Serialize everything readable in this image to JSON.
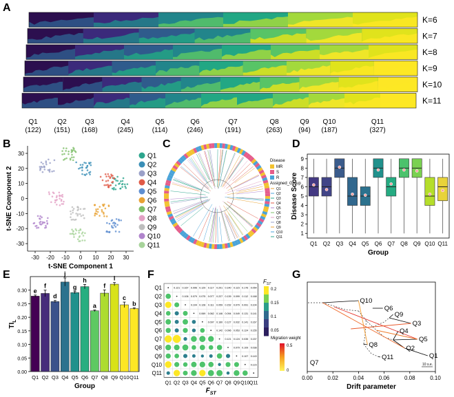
{
  "panels": {
    "A": "A",
    "B": "B",
    "C": "C",
    "D": "D",
    "E": "E",
    "F": "F",
    "G": "G"
  },
  "panel_a": {
    "k_labels": [
      "K=6",
      "K=7",
      "K=8",
      "K=9",
      "K=10",
      "K=11"
    ],
    "groups": [
      "Q1",
      "Q2",
      "Q3",
      "Q4",
      "Q5",
      "Q6",
      "Q7",
      "Q8",
      "Q9",
      "Q10",
      "Q11"
    ],
    "counts": [
      "(122)",
      "(151)",
      "(168)",
      "(245)",
      "(114)",
      "(246)",
      "(191)",
      "(263)",
      "(94)",
      "(187)",
      "(327)"
    ],
    "colors": [
      "#3b1f5e",
      "#46327e",
      "#365c8d",
      "#277f8e",
      "#1fa187",
      "#4ac16d",
      "#a0da39",
      "#d4e21a",
      "#fde725",
      "#2a788e",
      "#7ad151"
    ]
  },
  "panel_b": {
    "xlabel": "t-SNE Component 1",
    "ylabel": "t-SNE Component 2",
    "xticks": [
      "-30",
      "-20",
      "-10",
      "0",
      "10",
      "20",
      "30"
    ],
    "yticks": [
      "30",
      "20",
      "10",
      "0",
      "-10",
      "-20",
      "-30"
    ],
    "legend": [
      "Q1",
      "Q2",
      "Q3",
      "Q4",
      "Q5",
      "Q6",
      "Q7",
      "Q8",
      "Q9",
      "Q10",
      "Q11"
    ],
    "legend_colors": [
      "#2ca58d",
      "#3a8fb7",
      "#9aa0c8",
      "#e05a47",
      "#5f8fd1",
      "#e8a234",
      "#7fbf6a",
      "#e3a1c5",
      "#bdbdbd",
      "#b084cc",
      "#a7d39a"
    ]
  },
  "panel_c": {
    "legend_title_1": "Disease",
    "disease": [
      "MR",
      "S",
      "R"
    ],
    "disease_colors": [
      "#f2c230",
      "#e55d8a",
      "#4aa3d8"
    ],
    "legend_title_2": "Assigned_Group",
    "assigned": [
      "Q1",
      "Q2",
      "Q3",
      "Q4",
      "Q5",
      "Q6",
      "Q7",
      "Q8",
      "Q9",
      "Q10",
      "Q11"
    ]
  },
  "panel_d": {
    "ylabel": "Disease Score",
    "xlabel": "Group",
    "yticks": [
      "1",
      "2",
      "3",
      "4",
      "5",
      "6",
      "7",
      "8",
      "9"
    ],
    "groups": [
      "Q1",
      "Q2",
      "Q3",
      "Q4",
      "Q5",
      "Q6",
      "Q7",
      "Q8",
      "Q9",
      "Q10",
      "Q11"
    ],
    "colors": [
      "#443983",
      "#414487",
      "#3b5c8c",
      "#31688e",
      "#2c728e",
      "#21918c",
      "#25ab82",
      "#4cc26c",
      "#7ad151",
      "#b5de2b",
      "#e8d33a"
    ],
    "q1": [
      5,
      5,
      7,
      4,
      4,
      7,
      5,
      7,
      7,
      4,
      4.5
    ],
    "median": [
      6,
      6,
      8,
      5,
      5,
      8,
      6,
      8,
      8,
      5,
      6
    ],
    "q3": [
      7,
      7,
      9,
      7,
      6,
      9,
      7,
      9,
      9,
      7,
      7
    ],
    "mean": [
      6.2,
      5.7,
      8.1,
      5.2,
      5.1,
      7.8,
      6.3,
      7.8,
      7.7,
      5.2,
      5.6
    ]
  },
  "panel_e": {
    "ylabel": "TI",
    "ylabel_sub": "L",
    "xlabel": "Group",
    "yticks": [
      "0.00",
      "0.05",
      "0.10",
      "0.15",
      "0.20",
      "0.25",
      "0.30"
    ],
    "groups": [
      "Q1",
      "Q2",
      "Q3",
      "Q4",
      "Q5",
      "Q6",
      "Q7",
      "Q8",
      "Q9",
      "Q10",
      "Q11"
    ],
    "values": [
      0.278,
      0.288,
      0.258,
      0.33,
      0.291,
      0.313,
      0.224,
      0.289,
      0.322,
      0.246,
      0.232
    ],
    "errors": [
      0.004,
      0.012,
      0.004,
      0.015,
      0.004,
      0.008,
      0.003,
      0.012,
      0.006,
      0.01,
      0.003
    ],
    "letters": [
      "e",
      "f",
      "d",
      "j",
      "g",
      "h",
      "a",
      "f",
      "i",
      "c",
      "b"
    ],
    "colors": [
      "#440154",
      "#472d7b",
      "#3b528b",
      "#2c728e",
      "#21918c",
      "#28ae80",
      "#5ec962",
      "#addc30",
      "#d8e219",
      "#fde725",
      "#fde725"
    ]
  },
  "panel_f": {
    "groups": [
      "Q1",
      "Q2",
      "Q3",
      "Q4",
      "Q5",
      "Q6",
      "Q7",
      "Q8",
      "Q9",
      "Q10",
      "Q11"
    ],
    "xlabel": "F",
    "xlabel_sub": "ST",
    "colorbar_title": "F",
    "colorbar_sub": "ST",
    "colorbar_ticks": [
      "0.2",
      "0.15",
      "0.1",
      "0.05"
    ],
    "upper_values": [
      [
        "0.121",
        "0.167",
        "0.096",
        "0.129",
        "0.117",
        "0.201",
        "0.140",
        "0.115",
        "0.176",
        "0.054"
      ],
      [
        "0.106",
        "0.079",
        "0.075",
        "0.077",
        "0.227",
        "0.139",
        "0.099",
        "0.112",
        "0.168"
      ],
      [
        "0.104",
        "0.128",
        "0.111",
        "0.059",
        "0.152",
        "0.079",
        "0.091",
        "0.104"
      ],
      [
        "0.069",
        "0.062",
        "0.146",
        "0.094",
        "0.049",
        "0.131",
        "0.141"
      ],
      [
        "0.097",
        "0.160",
        "0.127",
        "0.032",
        "0.141",
        "0.167"
      ],
      [
        "0.142",
        "0.096",
        "0.053",
        "0.124",
        "0.155"
      ],
      [
        "0.121",
        "0.124",
        "0.035",
        "0.157"
      ],
      [
        "0.079",
        "0.109",
        "0.038"
      ],
      [
        "0.107",
        "0.143"
      ],
      [
        "0.123"
      ]
    ]
  },
  "panel_g": {
    "xlabel": "Drift parameter",
    "xticks": [
      "0.00",
      "0.02",
      "0.04",
      "0.06",
      "0.08",
      "0.10"
    ],
    "migration_title": "Migration weight",
    "migration_ticks": [
      "0.5",
      "0"
    ],
    "scale_label": "10 s.e.",
    "tips": [
      "Q10",
      "Q6",
      "Q9",
      "Q3",
      "Q4",
      "Q5",
      "Q2",
      "Q1",
      "Q8",
      "Q11",
      "Q7"
    ]
  }
}
